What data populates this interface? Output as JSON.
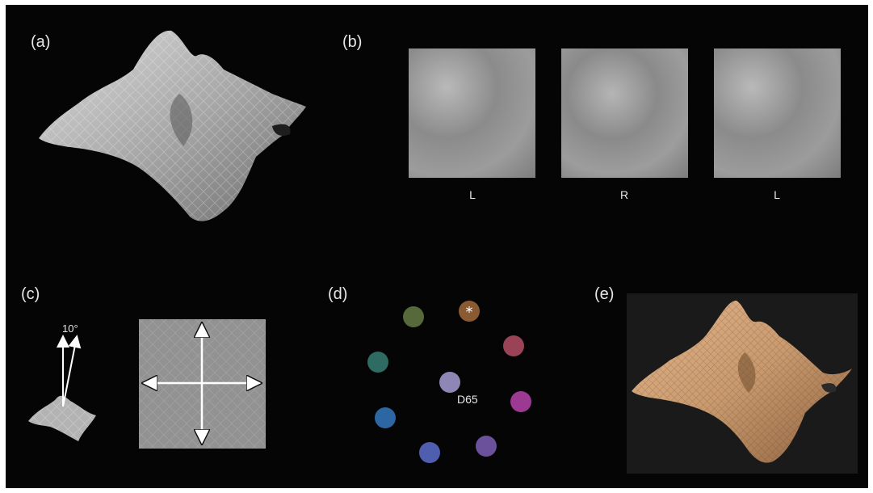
{
  "panels": {
    "a": {
      "label": "(a)"
    },
    "b": {
      "label": "(b)",
      "stereo_labels": [
        "L",
        "R",
        "L"
      ]
    },
    "c": {
      "label": "(c)",
      "tilt_angle": "10°"
    },
    "d": {
      "label": "(d)",
      "center_label": "D65",
      "star": "*",
      "swatches": [
        {
          "name": "orange",
          "color": "#8a5a33",
          "starred": true
        },
        {
          "name": "red",
          "color": "#9b4356"
        },
        {
          "name": "magenta",
          "color": "#9c3a93"
        },
        {
          "name": "violet",
          "color": "#6b519b"
        },
        {
          "name": "blue",
          "color": "#4f5eae"
        },
        {
          "name": "azure",
          "color": "#2c67a3"
        },
        {
          "name": "teal",
          "color": "#2e6b62"
        },
        {
          "name": "olive",
          "color": "#55693a"
        },
        {
          "name": "d65",
          "color": "#8e86b5"
        }
      ]
    },
    "e": {
      "label": "(e)"
    }
  },
  "colors": {
    "background": "#050505",
    "surface_gray": "#a9a9a9",
    "surface_tan": "#c99a6e",
    "panel_e_background": "#1a1a1a"
  }
}
